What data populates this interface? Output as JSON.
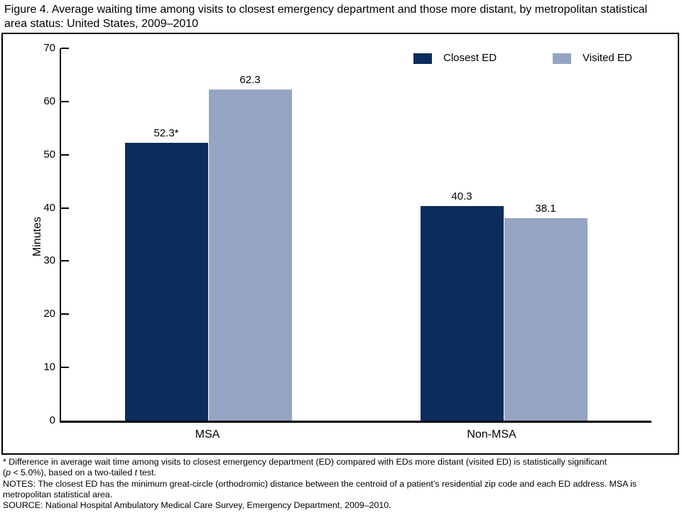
{
  "figure": {
    "title": "Figure 4. Average waiting time among visits to closest emergency department and those more distant, by metropolitan statistical area status: United States, 2009–2010"
  },
  "chart_data": {
    "type": "bar",
    "categories": [
      "MSA",
      "Non-MSA"
    ],
    "series": [
      {
        "name": "Closest ED",
        "color": "#0b2d5c",
        "values": [
          52.3,
          40.3
        ],
        "labels": [
          "52.3*",
          "40.3"
        ]
      },
      {
        "name": "Visited ED",
        "color": "#96a4c4",
        "values": [
          62.3,
          38.1
        ],
        "labels": [
          "62.3",
          "38.1"
        ]
      }
    ],
    "title": "",
    "xlabel": "",
    "ylabel": "Minutes",
    "ylim": [
      0,
      70
    ],
    "yticks": [
      0,
      10,
      20,
      30,
      40,
      50,
      60,
      70
    ],
    "grid": false,
    "legend_position": "top-right"
  },
  "footnotes": {
    "significance": {
      "line1": "* Difference in average wait time among visits to closest emergency department (ED) compared with EDs more distant (visited ED) is statistically significant",
      "line2_pre": "(",
      "p_italic": "p",
      "line2_mid": " < 5.0%), based on a two-tailed ",
      "t_italic": "t",
      "line2_post": " test."
    },
    "notes_line1": "NOTES: The closest ED has the minimum great-circle (orthodromic) distance between the centroid of a patient’s residential zip code and each ED address. MSA is",
    "notes_line2": "metropolitan statistical area.",
    "source": "SOURCE: National Hospital Ambulatory Medical Care Survey, Emergency Department, 2009–2010."
  }
}
